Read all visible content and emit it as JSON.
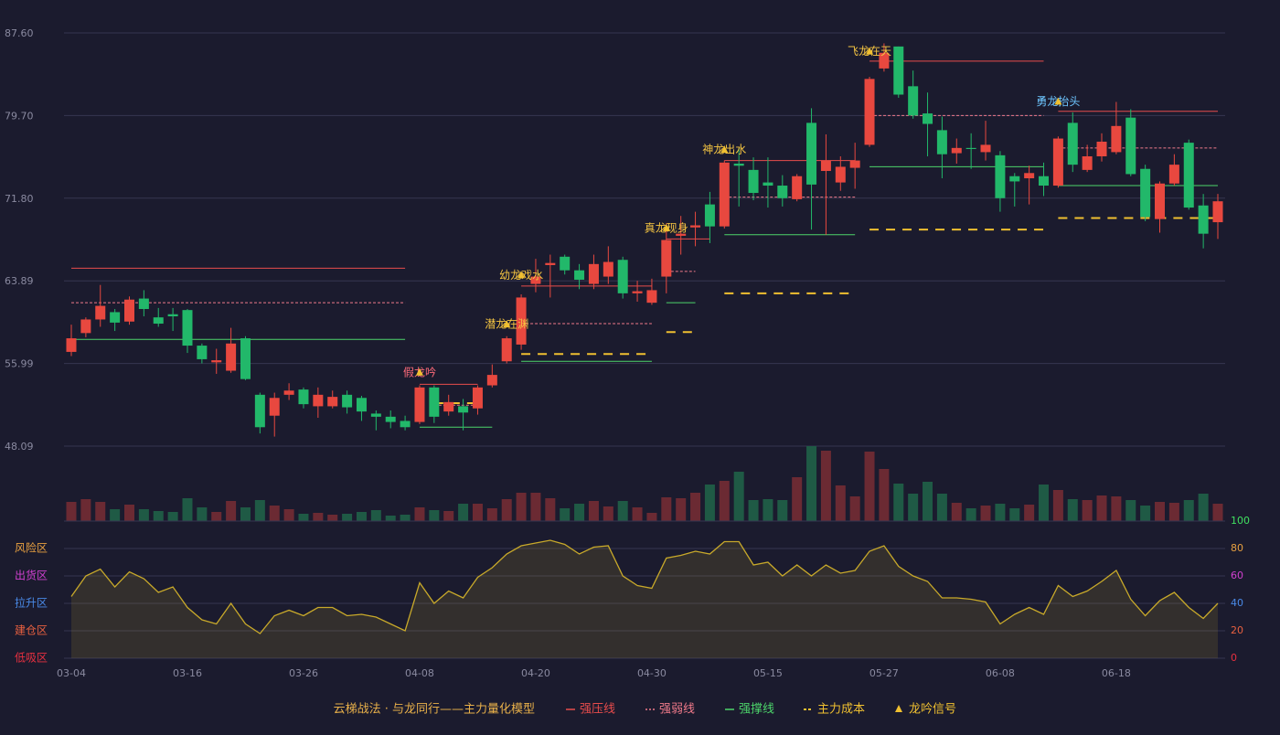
{
  "chart_data": [
    {
      "type": "candlestick",
      "ylim": [
        48.09,
        87.6
      ],
      "yticks": [
        48.09,
        55.99,
        63.89,
        {
          "value": 71.8,
          "label": "71.80"
        },
        {
          "value": 79.7,
          "label": "79.70"
        },
        {
          "value": 87.6,
          "label": "87.60"
        }
      ],
      "grid": true,
      "up_color": "#e8483f",
      "down_color": "#22b86a",
      "open": [
        57.1,
        58.9,
        60.2,
        60.9,
        60.0,
        62.2,
        60.4,
        60.7,
        61.1,
        57.7,
        56.1,
        55.3,
        58.4,
        53.0,
        51.0,
        53.0,
        53.5,
        51.9,
        51.9,
        53.0,
        52.7,
        51.2,
        50.9,
        50.5,
        50.4,
        53.7,
        51.4,
        51.9,
        51.7,
        53.9,
        56.2,
        57.8,
        63.6,
        65.4,
        66.2,
        64.9,
        63.6,
        64.3,
        65.9,
        62.7,
        61.8,
        64.3,
        68.2,
        69.0,
        71.2,
        69.1,
        75.1,
        74.5,
        73.3,
        73.0,
        71.7,
        79.0,
        74.4,
        73.3,
        74.7,
        76.9,
        84.2,
        86.3,
        82.5,
        79.9,
        78.3,
        76.1,
        76.6,
        76.2,
        75.9,
        73.9,
        73.7,
        73.9,
        73.0,
        79.0,
        74.5,
        75.8,
        76.2,
        79.5,
        74.6,
        69.8,
        73.2,
        77.1,
        71.1,
        69.5
      ],
      "high": [
        59.7,
        60.4,
        63.5,
        61.2,
        62.4,
        63.0,
        61.3,
        61.3,
        61.2,
        57.9,
        57.4,
        59.4,
        58.6,
        53.2,
        53.2,
        54.1,
        53.7,
        53.7,
        53.4,
        53.4,
        52.9,
        51.5,
        51.5,
        51.0,
        53.9,
        53.9,
        53.0,
        52.6,
        53.9,
        55.9,
        58.6,
        62.6,
        66.0,
        66.4,
        66.4,
        65.5,
        66.4,
        67.2,
        66.2,
        63.9,
        64.1,
        69.4,
        70.1,
        70.5,
        72.4,
        75.4,
        76.6,
        75.7,
        75.7,
        74.0,
        74.1,
        80.4,
        77.9,
        75.8,
        77.1,
        83.4,
        86.6,
        86.3,
        84.0,
        81.9,
        79.6,
        77.5,
        78.0,
        79.2,
        76.3,
        74.2,
        74.9,
        75.2,
        77.7,
        80.0,
        76.9,
        78.0,
        81.0,
        80.3,
        75.0,
        73.4,
        76.0,
        77.4,
        72.2,
        72.2
      ],
      "low": [
        56.7,
        58.5,
        59.5,
        59.1,
        59.7,
        60.5,
        59.5,
        59.1,
        57.0,
        56.0,
        55.0,
        55.1,
        54.4,
        49.3,
        49.0,
        52.5,
        51.7,
        50.8,
        51.7,
        51.2,
        50.5,
        49.6,
        49.8,
        49.6,
        50.2,
        50.3,
        51.0,
        49.6,
        51.1,
        53.7,
        56.0,
        57.3,
        62.8,
        62.3,
        64.5,
        63.1,
        63.1,
        63.6,
        62.2,
        61.9,
        61.6,
        62.7,
        66.4,
        67.2,
        67.5,
        68.9,
        71.0,
        71.6,
        70.9,
        71.0,
        71.5,
        68.8,
        68.3,
        72.5,
        72.7,
        76.7,
        83.9,
        81.4,
        79.4,
        75.8,
        73.7,
        75.1,
        74.6,
        75.4,
        70.5,
        71.0,
        71.2,
        72.0,
        72.8,
        74.3,
        74.3,
        75.3,
        76.0,
        73.9,
        69.6,
        68.5,
        73.0,
        70.7,
        67.0,
        67.9
      ],
      "close": [
        58.4,
        60.2,
        61.5,
        59.9,
        62.1,
        61.2,
        59.8,
        60.5,
        57.7,
        56.4,
        56.3,
        57.9,
        54.5,
        49.9,
        52.7,
        53.4,
        52.1,
        53.0,
        52.8,
        51.8,
        51.4,
        50.9,
        50.4,
        49.9,
        53.7,
        50.9,
        52.3,
        51.3,
        53.7,
        54.9,
        58.4,
        62.3,
        64.3,
        65.6,
        64.9,
        64.0,
        65.5,
        65.7,
        62.7,
        62.9,
        63.0,
        67.8,
        68.4,
        69.2,
        69.1,
        75.2,
        74.9,
        72.3,
        73.0,
        71.8,
        73.9,
        73.1,
        75.4,
        74.8,
        75.4,
        83.2,
        85.7,
        81.7,
        79.7,
        78.9,
        76.0,
        76.6,
        76.5,
        76.9,
        71.8,
        73.4,
        74.2,
        73.0,
        77.5,
        75.0,
        75.8,
        77.2,
        78.7,
        74.1,
        70.0,
        73.2,
        75.0,
        70.9,
        68.4,
        71.5
      ],
      "lines": [
        {
          "name": "强压线",
          "color": "#e84c4c",
          "dash": false,
          "segments": [
            {
              "from": 0,
              "to": 23,
              "value": 65.1
            },
            {
              "from": 24,
              "to": 28,
              "value": 54.0
            },
            {
              "from": 31,
              "to": 40,
              "value": 63.4
            },
            {
              "from": 41,
              "to": 44,
              "value": 67.9
            },
            {
              "from": 45,
              "to": 54,
              "value": 75.4
            },
            {
              "from": 55,
              "to": 67,
              "value": 84.9
            },
            {
              "from": 68,
              "to": 79,
              "value": 80.1
            }
          ]
        },
        {
          "name": "强弱线",
          "color": "#f07a8a",
          "dash": true,
          "segments": [
            {
              "from": 0,
              "to": 23,
              "value": 61.8
            },
            {
              "from": 25,
              "to": 28,
              "value": 52.0
            },
            {
              "from": 31,
              "to": 40,
              "value": 59.8
            },
            {
              "from": 41,
              "to": 43,
              "value": 64.8
            },
            {
              "from": 45,
              "to": 54,
              "value": 71.9
            },
            {
              "from": 55,
              "to": 67,
              "value": 79.7
            },
            {
              "from": 68,
              "to": 79,
              "value": 76.6
            }
          ]
        },
        {
          "name": "强撑线",
          "color": "#4cd46a",
          "dash": false,
          "segments": [
            {
              "from": 0,
              "to": 23,
              "value": 58.3
            },
            {
              "from": 24,
              "to": 29,
              "value": 49.9
            },
            {
              "from": 31,
              "to": 40,
              "value": 56.2
            },
            {
              "from": 41,
              "to": 43,
              "value": 61.8
            },
            {
              "from": 45,
              "to": 54,
              "value": 68.3
            },
            {
              "from": 55,
              "to": 67,
              "value": 74.8
            },
            {
              "from": 68,
              "to": 79,
              "value": 73.0
            }
          ]
        },
        {
          "name": "主力成本",
          "color": "#f0c030",
          "dash": true,
          "segments": [
            {
              "from": 25,
              "to": 28,
              "value": 52.2
            },
            {
              "from": 31,
              "to": 40,
              "value": 56.9
            },
            {
              "from": 41,
              "to": 43,
              "value": 59.0
            },
            {
              "from": 45,
              "to": 54,
              "value": 62.7
            },
            {
              "from": 55,
              "to": 67,
              "value": 68.8
            },
            {
              "from": 68,
              "to": 79,
              "value": 69.9
            }
          ]
        }
      ],
      "signals": {
        "name": "龙吟信号",
        "color": "#f0c030",
        "points": [
          {
            "label": "假龙吟",
            "index": 24,
            "value": 55.1,
            "color": "#ff6b7a"
          },
          {
            "label": "潜龙在渊",
            "index": 30,
            "value": 59.7,
            "color": "#f5c542"
          },
          {
            "label": "幼龙戏水",
            "index": 31,
            "value": 64.4,
            "color": "#f5c542"
          },
          {
            "label": "真龙现身",
            "index": 41,
            "value": 68.9,
            "color": "#f5c542"
          },
          {
            "label": "神龙出水",
            "index": 45,
            "value": 76.4,
            "color": "#f5c542"
          },
          {
            "label": "飞龙在天",
            "index": 55,
            "value": 85.8,
            "color": "#f5c542"
          },
          {
            "label": "勇龙抬头",
            "index": 68,
            "value": 81.0,
            "color": "#6ec6ff"
          }
        ]
      }
    },
    {
      "type": "bar",
      "up_color": "#6b2a33",
      "down_color": "#1f5a45",
      "values": [
        21,
        24,
        21,
        13,
        18,
        13,
        11,
        10,
        25,
        15,
        10,
        22,
        15,
        23,
        17,
        13,
        8,
        9,
        7,
        8,
        10,
        12,
        6,
        7,
        15,
        12,
        11,
        19,
        19,
        14,
        24,
        31,
        31,
        25,
        14,
        19,
        22,
        16,
        22,
        15,
        9,
        26,
        25,
        31,
        40,
        44,
        54,
        23,
        24,
        23,
        48,
        82,
        77,
        39,
        27,
        76,
        57,
        41,
        30,
        43,
        30,
        20,
        14,
        17,
        19,
        14,
        18,
        40,
        34,
        24,
        23,
        28,
        27,
        23,
        17,
        21,
        20,
        23,
        30,
        19
      ]
    },
    {
      "type": "area",
      "color": "#c8a92a",
      "ylim": [
        0,
        100
      ],
      "yticks": [
        0,
        20,
        40,
        60,
        80,
        100
      ],
      "ytick_colors": [
        "#e83040",
        "#e86040",
        "#4a8ae8",
        "#d040d0",
        "#e8a040",
        "#40e060"
      ],
      "zones": [
        {
          "value": 80,
          "label": "风险区",
          "color": "#e8a040"
        },
        {
          "value": 60,
          "label": "出货区",
          "color": "#d040d0"
        },
        {
          "value": 40,
          "label": "拉升区",
          "color": "#4a8ae8"
        },
        {
          "value": 20,
          "label": "建仓区",
          "color": "#e86040"
        },
        {
          "value": 0,
          "label": "低吸区",
          "color": "#e83040"
        }
      ],
      "categories": [
        "03-04",
        null,
        null,
        null,
        null,
        null,
        null,
        null,
        "03-16",
        null,
        null,
        null,
        null,
        null,
        null,
        null,
        "03-26",
        null,
        null,
        null,
        null,
        null,
        null,
        null,
        "04-08",
        null,
        null,
        null,
        null,
        null,
        null,
        null,
        "04-20",
        null,
        null,
        null,
        null,
        null,
        null,
        null,
        "04-30",
        null,
        null,
        null,
        null,
        null,
        null,
        null,
        "05-15",
        null,
        null,
        null,
        null,
        null,
        null,
        null,
        "05-27",
        null,
        null,
        null,
        null,
        null,
        null,
        null,
        "06-08",
        null,
        null,
        null,
        null,
        null,
        null,
        null,
        "06-18",
        null,
        null,
        null,
        null,
        null,
        null,
        null
      ],
      "values": [
        45,
        60,
        65,
        52,
        63,
        58,
        48,
        52,
        37,
        28,
        25,
        40,
        25,
        18,
        31,
        35,
        31,
        37,
        37,
        31,
        32,
        30,
        25,
        20,
        55,
        40,
        49,
        44,
        59,
        66,
        76,
        82,
        84,
        86,
        83,
        76,
        81,
        82,
        60,
        53,
        51,
        73,
        75,
        78,
        76,
        85,
        85,
        68,
        70,
        60,
        68,
        60,
        68,
        62,
        64,
        78,
        82,
        67,
        60,
        56,
        44,
        44,
        43,
        41,
        25,
        32,
        37,
        32,
        53,
        45,
        49,
        56,
        64,
        43,
        31,
        42,
        48,
        37,
        29,
        40
      ]
    }
  ],
  "legend_title": "云梯战法 · 与龙同行——主力量化模型"
}
